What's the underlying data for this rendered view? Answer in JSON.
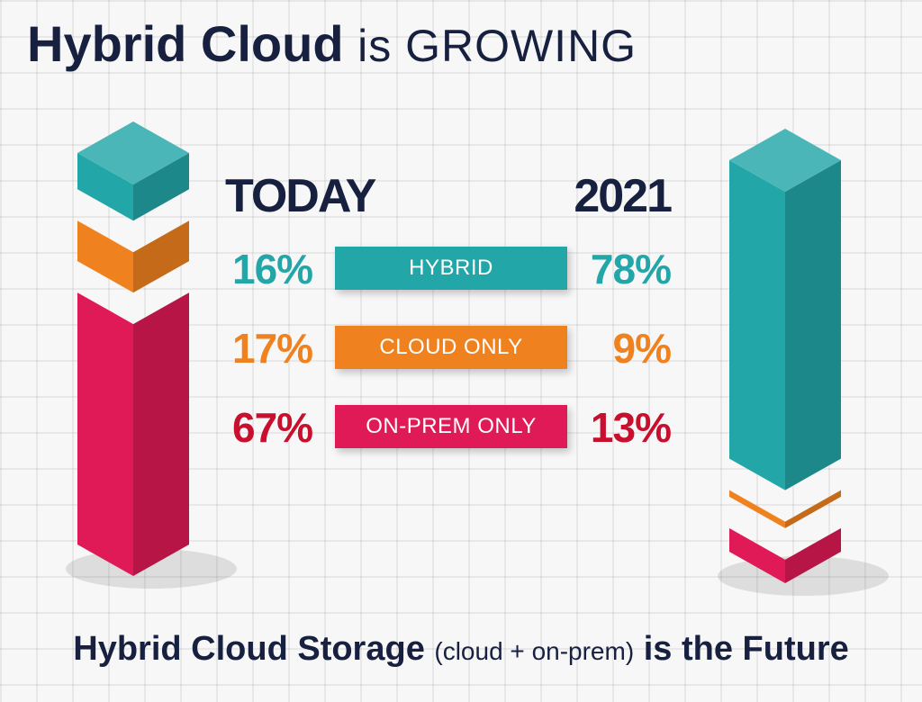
{
  "title": {
    "strong": "Hybrid Cloud",
    "light": "is GROWING"
  },
  "footer": {
    "strong1": "Hybrid Cloud Storage",
    "small": "(cloud + on-prem)",
    "strong2": "is the Future"
  },
  "colors": {
    "hybrid": "#23a6a8",
    "cloud": "#f0811f",
    "onprem": "#e01957",
    "navy": "#17203f"
  },
  "chart_data": {
    "type": "bar",
    "stacked": true,
    "categories": [
      "TODAY",
      "2021"
    ],
    "series": [
      {
        "name": "HYBRID",
        "values": [
          16,
          78
        ],
        "labels": [
          "16%",
          "78%"
        ]
      },
      {
        "name": "CLOUD ONLY",
        "values": [
          17,
          9
        ],
        "labels": [
          "17%",
          "9%"
        ]
      },
      {
        "name": "ON-PREM ONLY",
        "values": [
          67,
          13
        ],
        "labels": [
          "67%",
          "13%"
        ]
      }
    ],
    "unit": "%",
    "ylim": [
      0,
      100
    ]
  }
}
